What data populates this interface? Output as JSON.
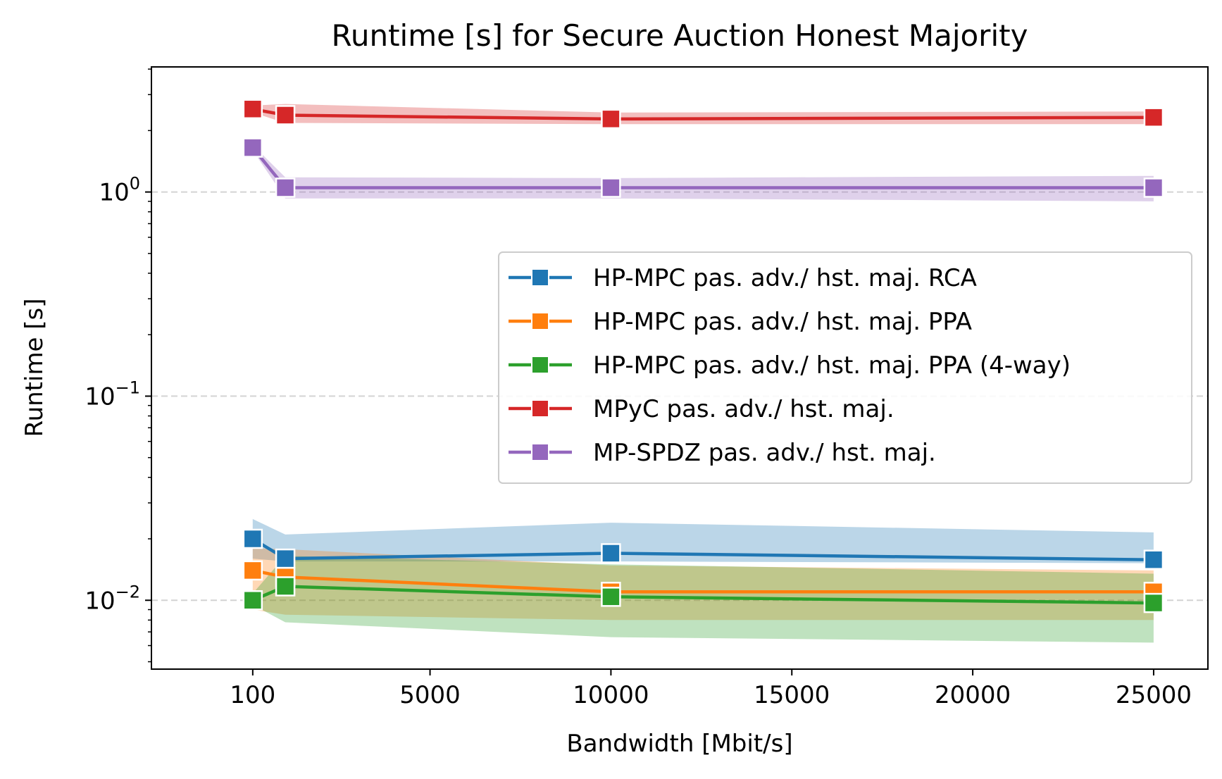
{
  "chart_data": {
    "type": "line",
    "title": "Runtime [s] for Secure Auction Honest Majority",
    "xlabel": "Bandwidth [Mbit/s]",
    "ylabel": "Runtime [s]",
    "xlim": [
      -2700,
      26500
    ],
    "ylim": [
      0.0046,
      4.1
    ],
    "yscale": "log",
    "grid": "y-major-dashed",
    "legend_position": "center-right",
    "x_ticks": [
      100,
      5000,
      10000,
      15000,
      20000,
      25000
    ],
    "x_tick_labels": [
      "100",
      "5000",
      "10000",
      "15000",
      "20000",
      "25000"
    ],
    "y_ticks": [
      {
        "value": 1,
        "base": "10",
        "exp": "0"
      },
      {
        "value": 0.1,
        "base": "10",
        "exp": "−1"
      },
      {
        "value": 0.01,
        "base": "10",
        "exp": "−2"
      }
    ],
    "x": [
      100,
      1000,
      10000,
      25000
    ],
    "series": [
      {
        "name": "HP-MPC pas. adv./ hst. maj. RCA",
        "color": "#1f77b4",
        "values": [
          0.02,
          0.016,
          0.017,
          0.0158
        ],
        "band_lower": [
          0.016,
          0.0155,
          0.0155,
          0.0152
        ],
        "band_upper": [
          0.025,
          0.021,
          0.024,
          0.0215
        ]
      },
      {
        "name": "HP-MPC pas. adv./ hst. maj. PPA",
        "color": "#ff7f0e",
        "values": [
          0.014,
          0.013,
          0.011,
          0.011
        ],
        "band_lower": [
          0.009,
          0.0085,
          0.008,
          0.008
        ],
        "band_upper": [
          0.018,
          0.0178,
          0.0148,
          0.014
        ]
      },
      {
        "name": "HP-MPC pas. adv./ hst. maj. PPA (4-way)",
        "color": "#2ca02c",
        "values": [
          0.01,
          0.0117,
          0.0104,
          0.0097
        ],
        "band_lower": [
          0.0095,
          0.0078,
          0.0066,
          0.0062
        ],
        "band_upper": [
          0.0108,
          0.0165,
          0.015,
          0.0135
        ]
      },
      {
        "name": "MPyC pas. adv./ hst. maj.",
        "color": "#d62728",
        "values": [
          2.55,
          2.38,
          2.28,
          2.32
        ],
        "band_lower": [
          2.45,
          2.18,
          2.15,
          2.15
        ],
        "band_upper": [
          2.65,
          2.7,
          2.45,
          2.48
        ]
      },
      {
        "name": "MP-SPDZ pas. adv./ hst. maj.",
        "color": "#9467bd",
        "values": [
          1.65,
          1.05,
          1.05,
          1.05
        ],
        "band_lower": [
          1.6,
          0.93,
          0.93,
          0.9
        ],
        "band_upper": [
          1.7,
          1.18,
          1.17,
          1.2
        ]
      }
    ]
  }
}
